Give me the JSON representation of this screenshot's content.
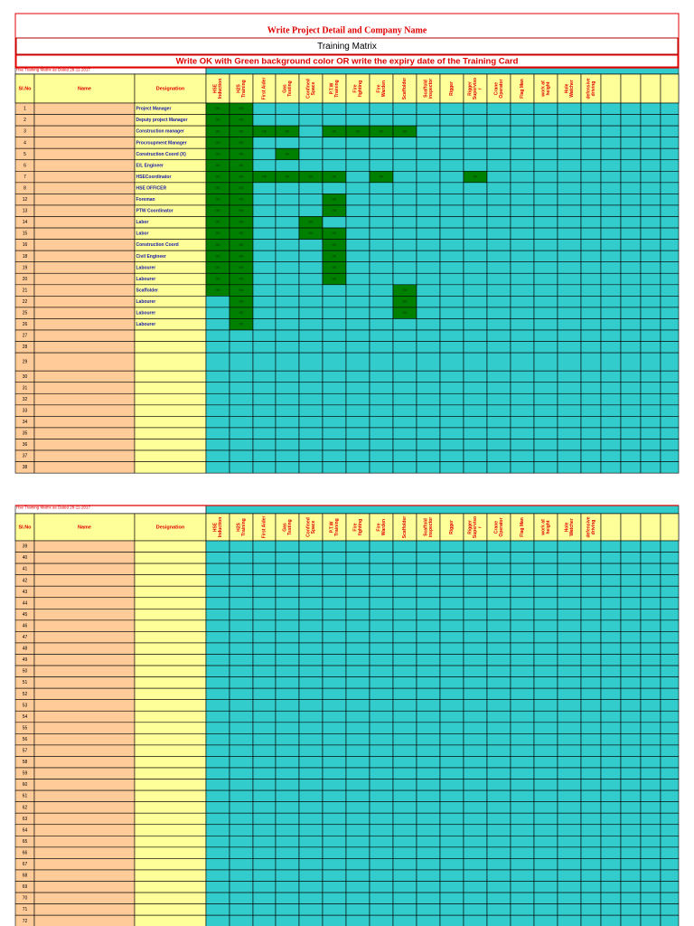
{
  "header": {
    "title": "Write Project Detail and Company Name",
    "subtitle": "Training Matrix",
    "instruction": "Write OK with Green background color OR write the expiry date of the Training Card"
  },
  "note": "Hse Training Matrix as Dated 28-11-2017",
  "columns": {
    "sl": "Sl.No",
    "name": "Name",
    "designation": "Designation",
    "skills": [
      [
        "HSE",
        "Induction"
      ],
      [
        "H2S",
        "Training"
      ],
      [
        "First Aider"
      ],
      [
        "Gas",
        "Testing"
      ],
      [
        "Confined",
        "Space"
      ],
      [
        "P.T.W",
        "Training"
      ],
      [
        "Fire",
        "fighting"
      ],
      [
        "Fire",
        "Warden"
      ],
      [
        "Scaffolder"
      ],
      [
        "Scaffold",
        "inspector"
      ],
      [
        "Rigger"
      ],
      [
        "Rigger",
        "Superviso",
        "r"
      ],
      [
        "Crane",
        "Operator"
      ],
      [
        "Flag Man"
      ],
      [
        "work at",
        "height"
      ],
      [
        "Hole",
        "Watcher"
      ],
      [
        "defensive",
        "driving"
      ],
      null,
      null,
      null,
      null
    ]
  },
  "sections": [
    {
      "rows": [
        {
          "sl": "1",
          "designation": "Project Manager",
          "cells": [
            "OK",
            "OK"
          ]
        },
        {
          "sl": "2",
          "designation": "Deputy project  Manager",
          "cells": [
            "OK",
            "OK"
          ]
        },
        {
          "sl": "3",
          "designation": "Construction manager",
          "cells": [
            "OK",
            "OK",
            "OK",
            "OK",
            null,
            "OK",
            "OK",
            "OK",
            "OK"
          ]
        },
        {
          "sl": "4",
          "designation": "Procroupment Manager",
          "cells": [
            "OK",
            "OK"
          ]
        },
        {
          "sl": "5",
          "designation": "Construction Coord (X)",
          "cells": [
            "OK",
            "OK",
            null,
            "OK"
          ]
        },
        {
          "sl": "6",
          "designation": "E/L Engineer",
          "cells": [
            "OK",
            "OK"
          ]
        },
        {
          "sl": "7",
          "designation": "HSECoordinator",
          "cells": [
            "OK",
            "OK",
            "OK",
            "OK",
            "OK",
            "OK",
            null,
            "OK",
            null,
            null,
            null,
            "OK"
          ]
        },
        {
          "sl": "8",
          "designation": "HSE OFFICER",
          "cells": [
            "OK",
            "OK"
          ]
        },
        {
          "sl": "12",
          "designation": "Foreman",
          "cells": [
            "OK",
            "OK",
            null,
            null,
            null,
            "OK"
          ]
        },
        {
          "sl": "13",
          "designation": "PTW Coordinator",
          "cells": [
            "OK",
            "OK",
            null,
            null,
            null,
            "OK"
          ]
        },
        {
          "sl": "14",
          "designation": "Labor",
          "cells": [
            "OK",
            "OK",
            null,
            null,
            "OK"
          ]
        },
        {
          "sl": "15",
          "designation": "Labor",
          "cells": [
            "OK",
            "OK",
            null,
            null,
            "OK",
            "OK"
          ]
        },
        {
          "sl": "16",
          "designation": "Construction Coord",
          "cells": [
            "OK",
            "OK",
            null,
            null,
            null,
            "OK"
          ]
        },
        {
          "sl": "18",
          "designation": "Civil Engineer",
          "cells": [
            "OK",
            "OK",
            null,
            null,
            null,
            "OK"
          ]
        },
        {
          "sl": "19",
          "designation": "Labourer",
          "cells": [
            "OK",
            "OK",
            null,
            null,
            null,
            "OK"
          ]
        },
        {
          "sl": "20",
          "designation": "Labourer",
          "cells": [
            "OK",
            "OK",
            null,
            null,
            null,
            "OK"
          ]
        },
        {
          "sl": "21",
          "designation": "Scaffolder",
          "cells": [
            "OK",
            "OK",
            null,
            null,
            null,
            null,
            null,
            null,
            "OK"
          ]
        },
        {
          "sl": "22",
          "designation": "Labourer",
          "cells": [
            null,
            "OK",
            null,
            null,
            null,
            null,
            null,
            null,
            "OK"
          ]
        },
        {
          "sl": "25",
          "designation": "Labourer",
          "cells": [
            null,
            "OK",
            null,
            null,
            null,
            null,
            null,
            null,
            "OK"
          ]
        },
        {
          "sl": "26",
          "designation": "Labourer",
          "cells": [
            null,
            "OK"
          ]
        },
        {
          "sl": "27"
        },
        {
          "sl": "28"
        },
        {
          "sl": "29"
        },
        {
          "sl": "30"
        },
        {
          "sl": "31"
        },
        {
          "sl": "32"
        },
        {
          "sl": "33"
        },
        {
          "sl": "34"
        },
        {
          "sl": "35"
        },
        {
          "sl": "36"
        },
        {
          "sl": "37"
        },
        {
          "sl": "38"
        }
      ]
    },
    {
      "rows": [
        {
          "sl": "39"
        },
        {
          "sl": "40"
        },
        {
          "sl": "41"
        },
        {
          "sl": "42"
        },
        {
          "sl": "43"
        },
        {
          "sl": "44"
        },
        {
          "sl": "45"
        },
        {
          "sl": "46"
        },
        {
          "sl": "47"
        },
        {
          "sl": "48"
        },
        {
          "sl": "49"
        },
        {
          "sl": "50"
        },
        {
          "sl": "51"
        },
        {
          "sl": "52"
        },
        {
          "sl": "53"
        },
        {
          "sl": "54"
        },
        {
          "sl": "55"
        },
        {
          "sl": "56"
        },
        {
          "sl": "57"
        },
        {
          "sl": "58"
        },
        {
          "sl": "59"
        },
        {
          "sl": "60"
        },
        {
          "sl": "61"
        },
        {
          "sl": "62"
        },
        {
          "sl": "63"
        },
        {
          "sl": "64"
        },
        {
          "sl": "65"
        },
        {
          "sl": "66"
        },
        {
          "sl": "67"
        },
        {
          "sl": "68"
        },
        {
          "sl": "69"
        },
        {
          "sl": "70"
        },
        {
          "sl": "71"
        },
        {
          "sl": "72"
        }
      ]
    }
  ]
}
